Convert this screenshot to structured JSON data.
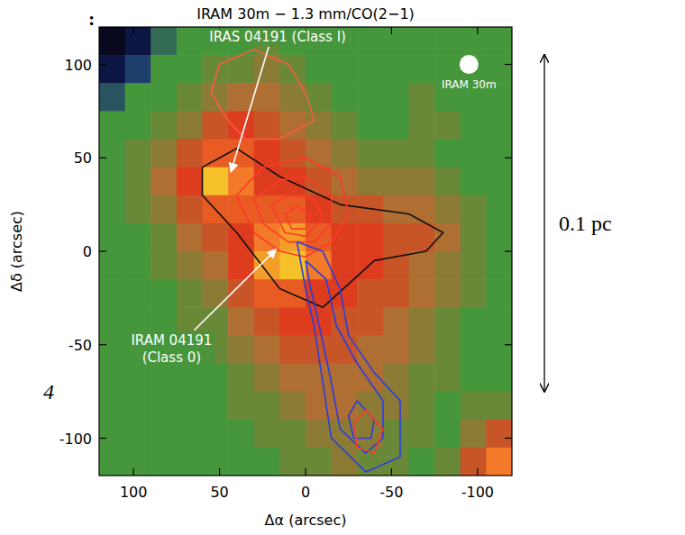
{
  "chart_data": {
    "type": "heatmap",
    "title": "IRAM 30m − 1.3 mm/CO(2−1)",
    "x_label": "Δα (arcsec)",
    "y_label": "Δδ (arcsec)",
    "xlim": [
      120,
      -120
    ],
    "ylim": [
      -120,
      120
    ],
    "xticks": [
      100,
      50,
      0,
      -50,
      -100
    ],
    "yticks": [
      -100,
      -50,
      0,
      50,
      100
    ],
    "cells": [
      [
        -1,
        -0.8,
        -0.2,
        0,
        0,
        0,
        0.1,
        0,
        0,
        0,
        0,
        0,
        0,
        0,
        0,
        0
      ],
      [
        -0.8,
        -0.4,
        0,
        0,
        0.1,
        0.1,
        0.2,
        0.1,
        0,
        0,
        0,
        0,
        0,
        0,
        0,
        0
      ],
      [
        -0.3,
        0,
        0,
        0.1,
        0.2,
        0.3,
        0.3,
        0.2,
        0.1,
        0,
        0,
        0,
        0.1,
        0,
        0,
        0
      ],
      [
        0,
        0,
        0.1,
        0.2,
        0.4,
        0.5,
        0.4,
        0.3,
        0.2,
        0.1,
        0,
        0,
        0.1,
        0.1,
        0,
        0
      ],
      [
        0,
        0.1,
        0.2,
        0.4,
        0.6,
        0.6,
        0.5,
        0.4,
        0.3,
        0.2,
        0.1,
        0.1,
        0.1,
        0,
        0,
        0
      ],
      [
        0,
        0.1,
        0.3,
        0.5,
        0.9,
        0.7,
        0.5,
        0.5,
        0.4,
        0.3,
        0.2,
        0.2,
        0.2,
        0.1,
        0,
        0
      ],
      [
        0,
        0.1,
        0.2,
        0.4,
        0.6,
        0.6,
        0.6,
        0.6,
        0.5,
        0.4,
        0.4,
        0.3,
        0.3,
        0.2,
        0.1,
        0
      ],
      [
        0,
        0,
        0.1,
        0.3,
        0.4,
        0.5,
        0.7,
        0.8,
        0.6,
        0.5,
        0.5,
        0.4,
        0.4,
        0.3,
        0.1,
        0
      ],
      [
        0,
        0,
        0.1,
        0.2,
        0.3,
        0.5,
        0.8,
        0.9,
        0.7,
        0.5,
        0.5,
        0.4,
        0.3,
        0.2,
        0.1,
        0
      ],
      [
        0,
        0,
        0,
        0.1,
        0.2,
        0.4,
        0.6,
        0.6,
        0.5,
        0.5,
        0.4,
        0.4,
        0.3,
        0.2,
        0.1,
        0
      ],
      [
        0,
        0,
        0,
        0.1,
        0.1,
        0.3,
        0.4,
        0.5,
        0.5,
        0.4,
        0.4,
        0.3,
        0.2,
        0.1,
        0,
        0
      ],
      [
        0,
        0,
        0,
        0,
        0.1,
        0.2,
        0.3,
        0.4,
        0.4,
        0.4,
        0.3,
        0.3,
        0.2,
        0.1,
        0,
        0
      ],
      [
        0,
        0,
        0,
        0,
        0,
        0.1,
        0.2,
        0.3,
        0.3,
        0.3,
        0.3,
        0.2,
        0.1,
        0.1,
        0,
        0
      ],
      [
        0,
        0,
        0,
        0,
        0,
        0.1,
        0.1,
        0.2,
        0.3,
        0.3,
        0.2,
        0.2,
        0.1,
        0,
        0.1,
        0.1
      ],
      [
        0,
        0,
        0,
        0,
        0,
        0,
        0.1,
        0.1,
        0.2,
        0.2,
        0.2,
        0.1,
        0.1,
        0,
        0.2,
        0.4
      ],
      [
        0,
        0,
        0,
        0,
        0,
        0,
        0,
        0.1,
        0.1,
        0.2,
        0.1,
        0.1,
        0,
        0.1,
        0.4,
        0.7
      ]
    ],
    "contours": [
      {
        "color": "#101010",
        "x": [
          60,
          40,
          15,
          -20,
          -60,
          -80,
          -70,
          -40,
          -10,
          15,
          40,
          60,
          60
        ],
        "y": [
          45,
          55,
          40,
          25,
          20,
          10,
          0,
          -5,
          -30,
          -20,
          10,
          30,
          45
        ]
      },
      {
        "color": "#ff5a3c",
        "x": [
          55,
          50,
          30,
          10,
          0,
          -5,
          15,
          35,
          45,
          55
        ],
        "y": [
          85,
          100,
          108,
          100,
          85,
          70,
          60,
          60,
          70,
          85
        ]
      },
      {
        "color": "#ff3a2a",
        "x": [
          40,
          25,
          0,
          -20,
          -25,
          -15,
          0,
          15,
          30,
          40
        ],
        "y": [
          30,
          45,
          50,
          40,
          20,
          5,
          -3,
          0,
          10,
          30
        ]
      },
      {
        "color": "#ff3a2a",
        "x": [
          30,
          15,
          0,
          -15,
          -15,
          -5,
          10,
          25,
          30
        ],
        "y": [
          28,
          38,
          40,
          30,
          15,
          5,
          5,
          15,
          28
        ]
      },
      {
        "color": "#ff3a2a",
        "x": [
          20,
          10,
          -5,
          -10,
          0,
          12,
          20
        ],
        "y": [
          25,
          30,
          28,
          18,
          8,
          10,
          25
        ]
      },
      {
        "color": "#ff3a2a",
        "x": [
          12,
          5,
          -3,
          0,
          8,
          12
        ],
        "y": [
          20,
          24,
          20,
          12,
          12,
          20
        ]
      },
      {
        "color": "#2a3ce0",
        "x": [
          5,
          -10,
          -20,
          -25,
          -40,
          -55,
          -55,
          -35,
          -15,
          -10,
          -5,
          0,
          5
        ],
        "y": [
          5,
          0,
          -20,
          -45,
          -65,
          -80,
          -110,
          -118,
          -100,
          -70,
          -40,
          -20,
          5
        ]
      },
      {
        "color": "#2a3ce0",
        "x": [
          0,
          -12,
          -18,
          -30,
          -45,
          -45,
          -35,
          -20,
          -15,
          -8,
          -3,
          0
        ],
        "y": [
          -5,
          -15,
          -40,
          -60,
          -80,
          -100,
          -108,
          -95,
          -70,
          -40,
          -20,
          -5
        ]
      },
      {
        "color": "#2a3ce0",
        "x": [
          -30,
          -40,
          -38,
          -28,
          -25,
          -30
        ],
        "y": [
          -80,
          -90,
          -100,
          -100,
          -88,
          -80
        ]
      },
      {
        "color": "#ff3a2a",
        "x": [
          -35,
          -45,
          -40,
          -30,
          -28,
          -35
        ],
        "y": [
          -85,
          -95,
          -108,
          -105,
          -92,
          -85
        ]
      }
    ],
    "annotations": [
      {
        "text": "IRAS 04191 (Class I)",
        "target": [
          45,
          40
        ]
      },
      {
        "text": "IRAM 04191 (Class 0)",
        "target": [
          15,
          3
        ]
      }
    ],
    "beam_label": "IRAM 30m",
    "beam_fwhm": 11,
    "scale_bar": {
      "label": "0.1 pc",
      "from": 105,
      "to": -75
    },
    "fragments": [
      ":",
      "4"
    ]
  }
}
